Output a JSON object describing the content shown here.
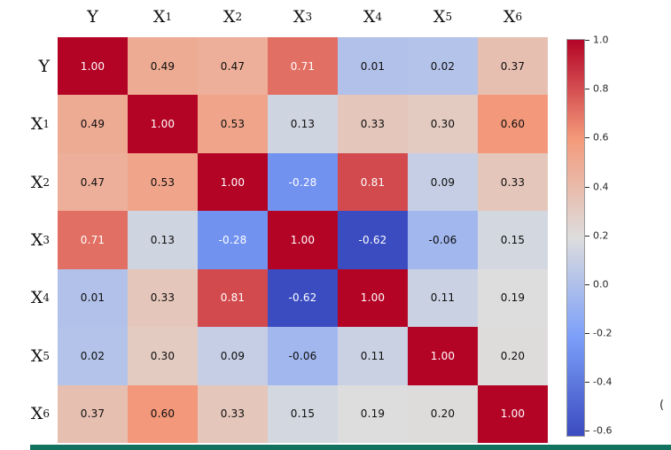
{
  "chart_data": {
    "type": "heatmap",
    "title": "",
    "labels": [
      "Y",
      "X1",
      "X2",
      "X3",
      "X4",
      "X5",
      "X6"
    ],
    "matrix": [
      [
        1.0,
        0.49,
        0.47,
        0.71,
        0.01,
        0.02,
        0.37
      ],
      [
        0.49,
        1.0,
        0.53,
        0.13,
        0.33,
        0.3,
        0.6
      ],
      [
        0.47,
        0.53,
        1.0,
        -0.28,
        0.81,
        0.09,
        0.33
      ],
      [
        0.71,
        0.13,
        -0.28,
        1.0,
        -0.62,
        -0.06,
        0.15
      ],
      [
        0.01,
        0.33,
        0.81,
        -0.62,
        1.0,
        0.11,
        0.19
      ],
      [
        0.02,
        0.3,
        0.09,
        -0.06,
        0.11,
        1.0,
        0.2
      ],
      [
        0.37,
        0.6,
        0.33,
        0.15,
        0.19,
        0.2,
        1.0
      ]
    ],
    "vmin": -0.62,
    "vmax": 1.0,
    "value_decimals": 2,
    "annotation_text_dark": "#0d0d0d",
    "annotation_text_light": "#ffffff",
    "colorbar": {
      "ticks": [
        1.0,
        0.8,
        0.6,
        0.4,
        0.2,
        0.0,
        -0.2,
        -0.4,
        -0.6
      ],
      "tick_decimals": 1,
      "stray_glyph": "("
    },
    "colormap": {
      "name": "coolwarm",
      "anchors": [
        {
          "t": 0.0,
          "color": "#3b4cc0"
        },
        {
          "t": 0.25,
          "color": "#7c9ff9"
        },
        {
          "t": 0.5,
          "color": "#dddddd"
        },
        {
          "t": 0.75,
          "color": "#f49a7b"
        },
        {
          "t": 1.0,
          "color": "#b40426"
        }
      ]
    },
    "legend_position": "right-colorbar",
    "grid": false
  },
  "decor": {
    "bottom_strip_color": "#12715f"
  }
}
